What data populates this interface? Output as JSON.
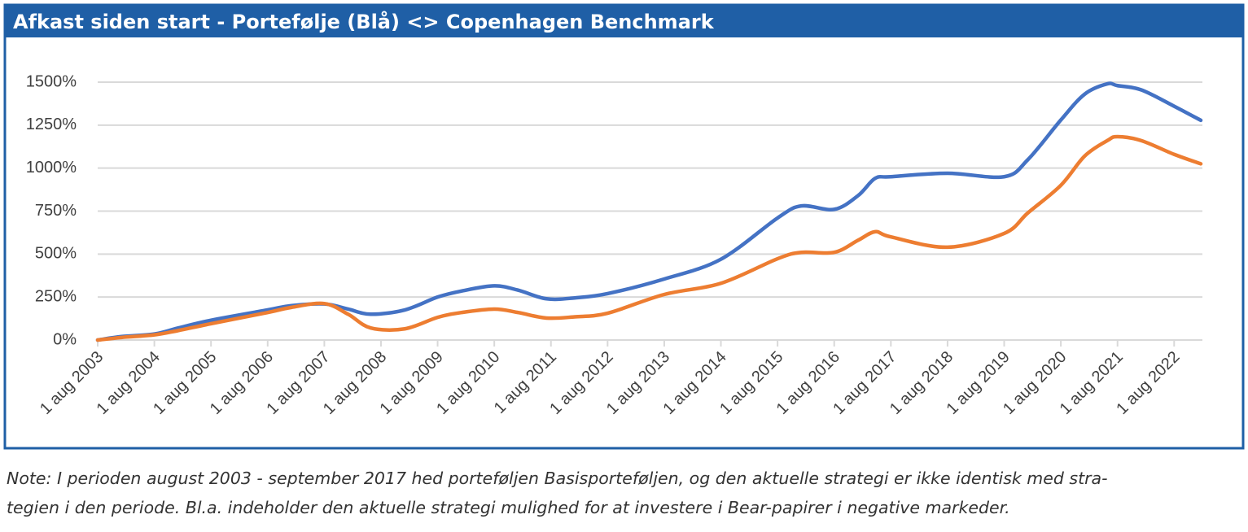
{
  "chart_data": {
    "type": "line",
    "title": "Afkast siden start - Portefølje (Blå) <> Copenhagen Benchmark",
    "x": [
      2003.58,
      2004.0,
      2004.58,
      2005.0,
      2005.58,
      2006.58,
      2007.0,
      2007.58,
      2008.0,
      2008.4,
      2009.0,
      2009.58,
      2010.0,
      2010.58,
      2011.0,
      2011.5,
      2012.0,
      2012.58,
      2013.58,
      2014.58,
      2015.58,
      2016.0,
      2016.58,
      2017.0,
      2017.3,
      2017.58,
      2018.58,
      2019.58,
      2020.0,
      2020.58,
      2021.0,
      2021.4,
      2021.58,
      2022.0,
      2022.58,
      2023.05
    ],
    "series": [
      {
        "name": "Portefølje",
        "color": "#4472c4",
        "values": [
          0,
          20,
          35,
          70,
          115,
          175,
          200,
          210,
          180,
          150,
          175,
          250,
          285,
          315,
          290,
          240,
          245,
          270,
          355,
          470,
          710,
          780,
          760,
          840,
          940,
          950,
          970,
          950,
          1050,
          1280,
          1430,
          1490,
          1480,
          1455,
          1360,
          1278
        ]
      },
      {
        "name": "Copenhagen Benchmark",
        "color": "#ed7d31",
        "values": [
          0,
          15,
          30,
          55,
          95,
          160,
          190,
          212,
          150,
          70,
          65,
          132,
          160,
          180,
          160,
          128,
          135,
          156,
          265,
          330,
          473,
          510,
          510,
          580,
          630,
          600,
          540,
          620,
          740,
          900,
          1070,
          1160,
          1183,
          1160,
          1080,
          1025
        ]
      }
    ],
    "xlim": [
      2003.58,
      2023.05
    ],
    "xticks": [
      {
        "value": 2003.58,
        "label": "1 aug 2003"
      },
      {
        "value": 2004.58,
        "label": "1 aug 2004"
      },
      {
        "value": 2005.58,
        "label": "1 aug 2005"
      },
      {
        "value": 2006.58,
        "label": "1 aug 2006"
      },
      {
        "value": 2007.58,
        "label": "1 aug 2007"
      },
      {
        "value": 2008.58,
        "label": "1 aug 2008"
      },
      {
        "value": 2009.58,
        "label": "1 aug 2009"
      },
      {
        "value": 2010.58,
        "label": "1 aug 2010"
      },
      {
        "value": 2011.58,
        "label": "1 aug 2011"
      },
      {
        "value": 2012.58,
        "label": "1 aug 2012"
      },
      {
        "value": 2013.58,
        "label": "1 aug 2013"
      },
      {
        "value": 2014.58,
        "label": "1 aug 2014"
      },
      {
        "value": 2015.58,
        "label": "1 aug 2015"
      },
      {
        "value": 2016.58,
        "label": "1 aug 2016"
      },
      {
        "value": 2017.58,
        "label": "1 aug 2017"
      },
      {
        "value": 2018.58,
        "label": "1 aug 2018"
      },
      {
        "value": 2019.58,
        "label": "1 aug 2019"
      },
      {
        "value": 2020.58,
        "label": "1 aug 2020"
      },
      {
        "value": 2021.58,
        "label": "1 aug 2021"
      },
      {
        "value": 2022.58,
        "label": "1 aug 2022"
      }
    ],
    "ylim": [
      0,
      1500
    ],
    "yticks": [
      {
        "value": 0,
        "label": "0%"
      },
      {
        "value": 250,
        "label": "250%"
      },
      {
        "value": 500,
        "label": "500%"
      },
      {
        "value": 750,
        "label": "750%"
      },
      {
        "value": 1000,
        "label": "1000%"
      },
      {
        "value": 1250,
        "label": "1250%"
      },
      {
        "value": 1500,
        "label": "1500%"
      }
    ],
    "grid": true
  },
  "note": [
    "Note: I perioden august 2003 - september 2017 hed porteføljen Basisporteføljen, og den aktuelle strategi er ikke identisk med stra-",
    "tegien i den periode. Bl.a. indeholder den aktuelle strategi mulighed for at investere i Bear-papirer i negative markeder."
  ]
}
